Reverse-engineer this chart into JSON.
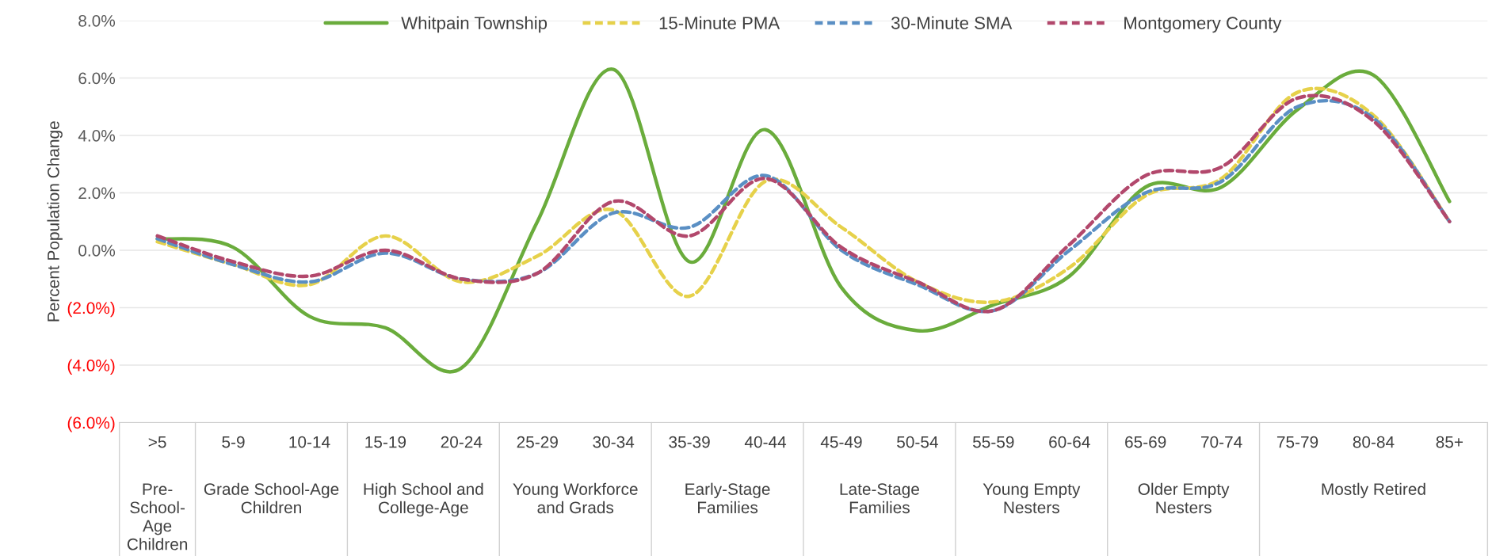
{
  "chart_data": {
    "type": "line",
    "ylabel": "Percent Population Change",
    "categories": [
      ">5",
      "5-9",
      "10-14",
      "15-19",
      "20-24",
      "25-29",
      "30-34",
      "35-39",
      "40-44",
      "45-49",
      "50-54",
      "55-59",
      "60-64",
      "65-69",
      "70-74",
      "75-79",
      "80-84",
      "85+"
    ],
    "series": [
      {
        "name": "Whitpain Township",
        "color": "#6aac3c",
        "line_style": "solid",
        "values": [
          0.4,
          0.1,
          -2.3,
          -2.7,
          -4.1,
          1.0,
          6.3,
          -0.4,
          4.2,
          -1.3,
          -2.8,
          -1.9,
          -0.9,
          2.2,
          2.2,
          4.9,
          6.1,
          1.7
        ]
      },
      {
        "name": "15-Minute PMA",
        "color": "#e6d14a",
        "line_style": "dashed",
        "values": [
          0.3,
          -0.5,
          -1.2,
          0.5,
          -1.1,
          -0.2,
          1.4,
          -1.6,
          2.4,
          0.8,
          -1.1,
          -1.8,
          -0.6,
          1.9,
          2.5,
          5.5,
          4.7,
          1.0
        ]
      },
      {
        "name": "30-Minute SMA",
        "color": "#5a8fc4",
        "line_style": "dashed",
        "values": [
          0.4,
          -0.5,
          -1.1,
          -0.1,
          -1.0,
          -0.8,
          1.3,
          0.8,
          2.6,
          0.0,
          -1.2,
          -2.1,
          0.0,
          2.0,
          2.4,
          5.0,
          4.6,
          1.0
        ]
      },
      {
        "name": "Montgomery County",
        "color": "#b2486c",
        "line_style": "dashed",
        "values": [
          0.5,
          -0.4,
          -0.9,
          0.0,
          -1.0,
          -0.8,
          1.7,
          0.5,
          2.5,
          0.1,
          -1.1,
          -2.1,
          0.2,
          2.6,
          2.9,
          5.3,
          4.5,
          1.0
        ]
      }
    ],
    "ylim": [
      -6,
      8
    ],
    "yticks": [
      {
        "value": -6,
        "label": "(6.0%)"
      },
      {
        "value": -4,
        "label": "(4.0%)"
      },
      {
        "value": -2,
        "label": "(2.0%)"
      },
      {
        "value": 0,
        "label": "0.0%"
      },
      {
        "value": 2,
        "label": "2.0%"
      },
      {
        "value": 4,
        "label": "4.0%"
      },
      {
        "value": 6,
        "label": "6.0%"
      },
      {
        "value": 8,
        "label": "8.0%"
      }
    ],
    "grid": "y",
    "legend": "top",
    "marker": "none",
    "annotations": [
      "Pre-\nSchool-\nAge\nChildren",
      "Grade School-Age\nChildren",
      "High School and\nCollege-Age",
      "Young Workforce\nand Grads",
      "Early-Stage\nFamilies",
      "Late-Stage\nFamilies",
      "Young Empty\nNesters",
      "Older Empty\nNesters",
      "Mostly Retired"
    ]
  }
}
